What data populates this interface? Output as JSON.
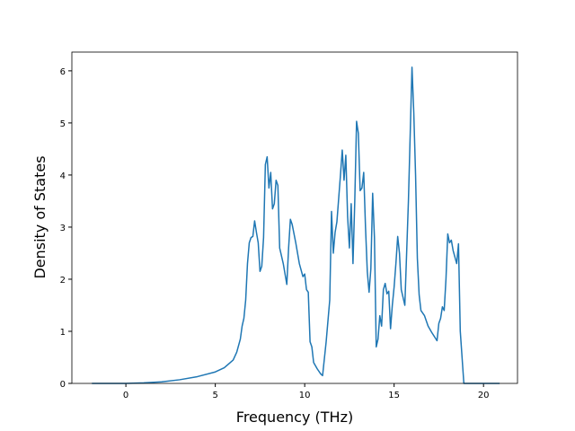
{
  "chart_data": {
    "type": "line",
    "xlabel": "Frequency (THz)",
    "ylabel": "Density of States",
    "x": [
      -1.9,
      0,
      1,
      2,
      3,
      4,
      5,
      5.5,
      6,
      6.2,
      6.4,
      6.5,
      6.6,
      6.7,
      6.8,
      6.9,
      7.0,
      7.1,
      7.2,
      7.3,
      7.4,
      7.5,
      7.6,
      7.7,
      7.8,
      7.9,
      8.0,
      8.1,
      8.2,
      8.3,
      8.4,
      8.5,
      8.6,
      8.8,
      9.0,
      9.1,
      9.2,
      9.3,
      9.5,
      9.7,
      9.9,
      10.0,
      10.1,
      10.2,
      10.3,
      10.4,
      10.5,
      10.7,
      10.9,
      11.0,
      11.2,
      11.4,
      11.5,
      11.6,
      11.7,
      11.8,
      12.0,
      12.1,
      12.2,
      12.3,
      12.4,
      12.5,
      12.6,
      12.7,
      12.8,
      12.9,
      13.0,
      13.1,
      13.2,
      13.3,
      13.4,
      13.5,
      13.6,
      13.7,
      13.8,
      13.9,
      14.0,
      14.1,
      14.2,
      14.3,
      14.4,
      14.5,
      14.6,
      14.7,
      14.8,
      14.9,
      15.0,
      15.1,
      15.2,
      15.3,
      15.4,
      15.6,
      15.8,
      16.0,
      16.1,
      16.2,
      16.3,
      16.4,
      16.5,
      16.7,
      16.9,
      17.1,
      17.4,
      17.5,
      17.6,
      17.7,
      17.8,
      17.9,
      18.0,
      18.1,
      18.2,
      18.3,
      18.5,
      18.6,
      18.7,
      18.9,
      20.0,
      20.9
    ],
    "series": [
      {
        "color": "#1f77b4",
        "values": [
          0,
          0,
          0.01,
          0.03,
          0.07,
          0.13,
          0.22,
          0.3,
          0.45,
          0.6,
          0.85,
          1.1,
          1.25,
          1.6,
          2.3,
          2.7,
          2.8,
          2.82,
          3.12,
          2.9,
          2.7,
          2.15,
          2.25,
          2.8,
          4.2,
          4.35,
          3.75,
          4.05,
          3.35,
          3.45,
          3.9,
          3.8,
          2.6,
          2.3,
          1.9,
          2.6,
          3.15,
          3.05,
          2.7,
          2.3,
          2.05,
          2.1,
          1.8,
          1.75,
          0.8,
          0.7,
          0.4,
          0.28,
          0.18,
          0.15,
          0.8,
          1.6,
          3.3,
          2.5,
          2.9,
          3.1,
          4.0,
          4.48,
          3.9,
          4.38,
          3.2,
          2.6,
          3.45,
          2.3,
          3.5,
          5.03,
          4.8,
          3.7,
          3.75,
          4.05,
          3.0,
          2.15,
          1.75,
          2.2,
          3.65,
          2.8,
          0.7,
          0.85,
          1.3,
          1.1,
          1.8,
          1.92,
          1.72,
          1.77,
          1.05,
          1.5,
          1.85,
          2.3,
          2.82,
          2.5,
          1.8,
          1.5,
          3.5,
          6.07,
          5.2,
          4.0,
          2.4,
          1.7,
          1.4,
          1.3,
          1.1,
          0.98,
          0.82,
          1.15,
          1.25,
          1.47,
          1.4,
          2.0,
          2.87,
          2.7,
          2.75,
          2.55,
          2.3,
          2.68,
          1.0,
          0,
          0,
          0
        ]
      }
    ],
    "xlim": [
      -3.02,
      21.9
    ],
    "ylim": [
      0,
      6.36
    ],
    "xticks": [
      0,
      5,
      10,
      15,
      20
    ],
    "yticks": [
      0,
      1,
      2,
      3,
      4,
      5,
      6
    ]
  }
}
